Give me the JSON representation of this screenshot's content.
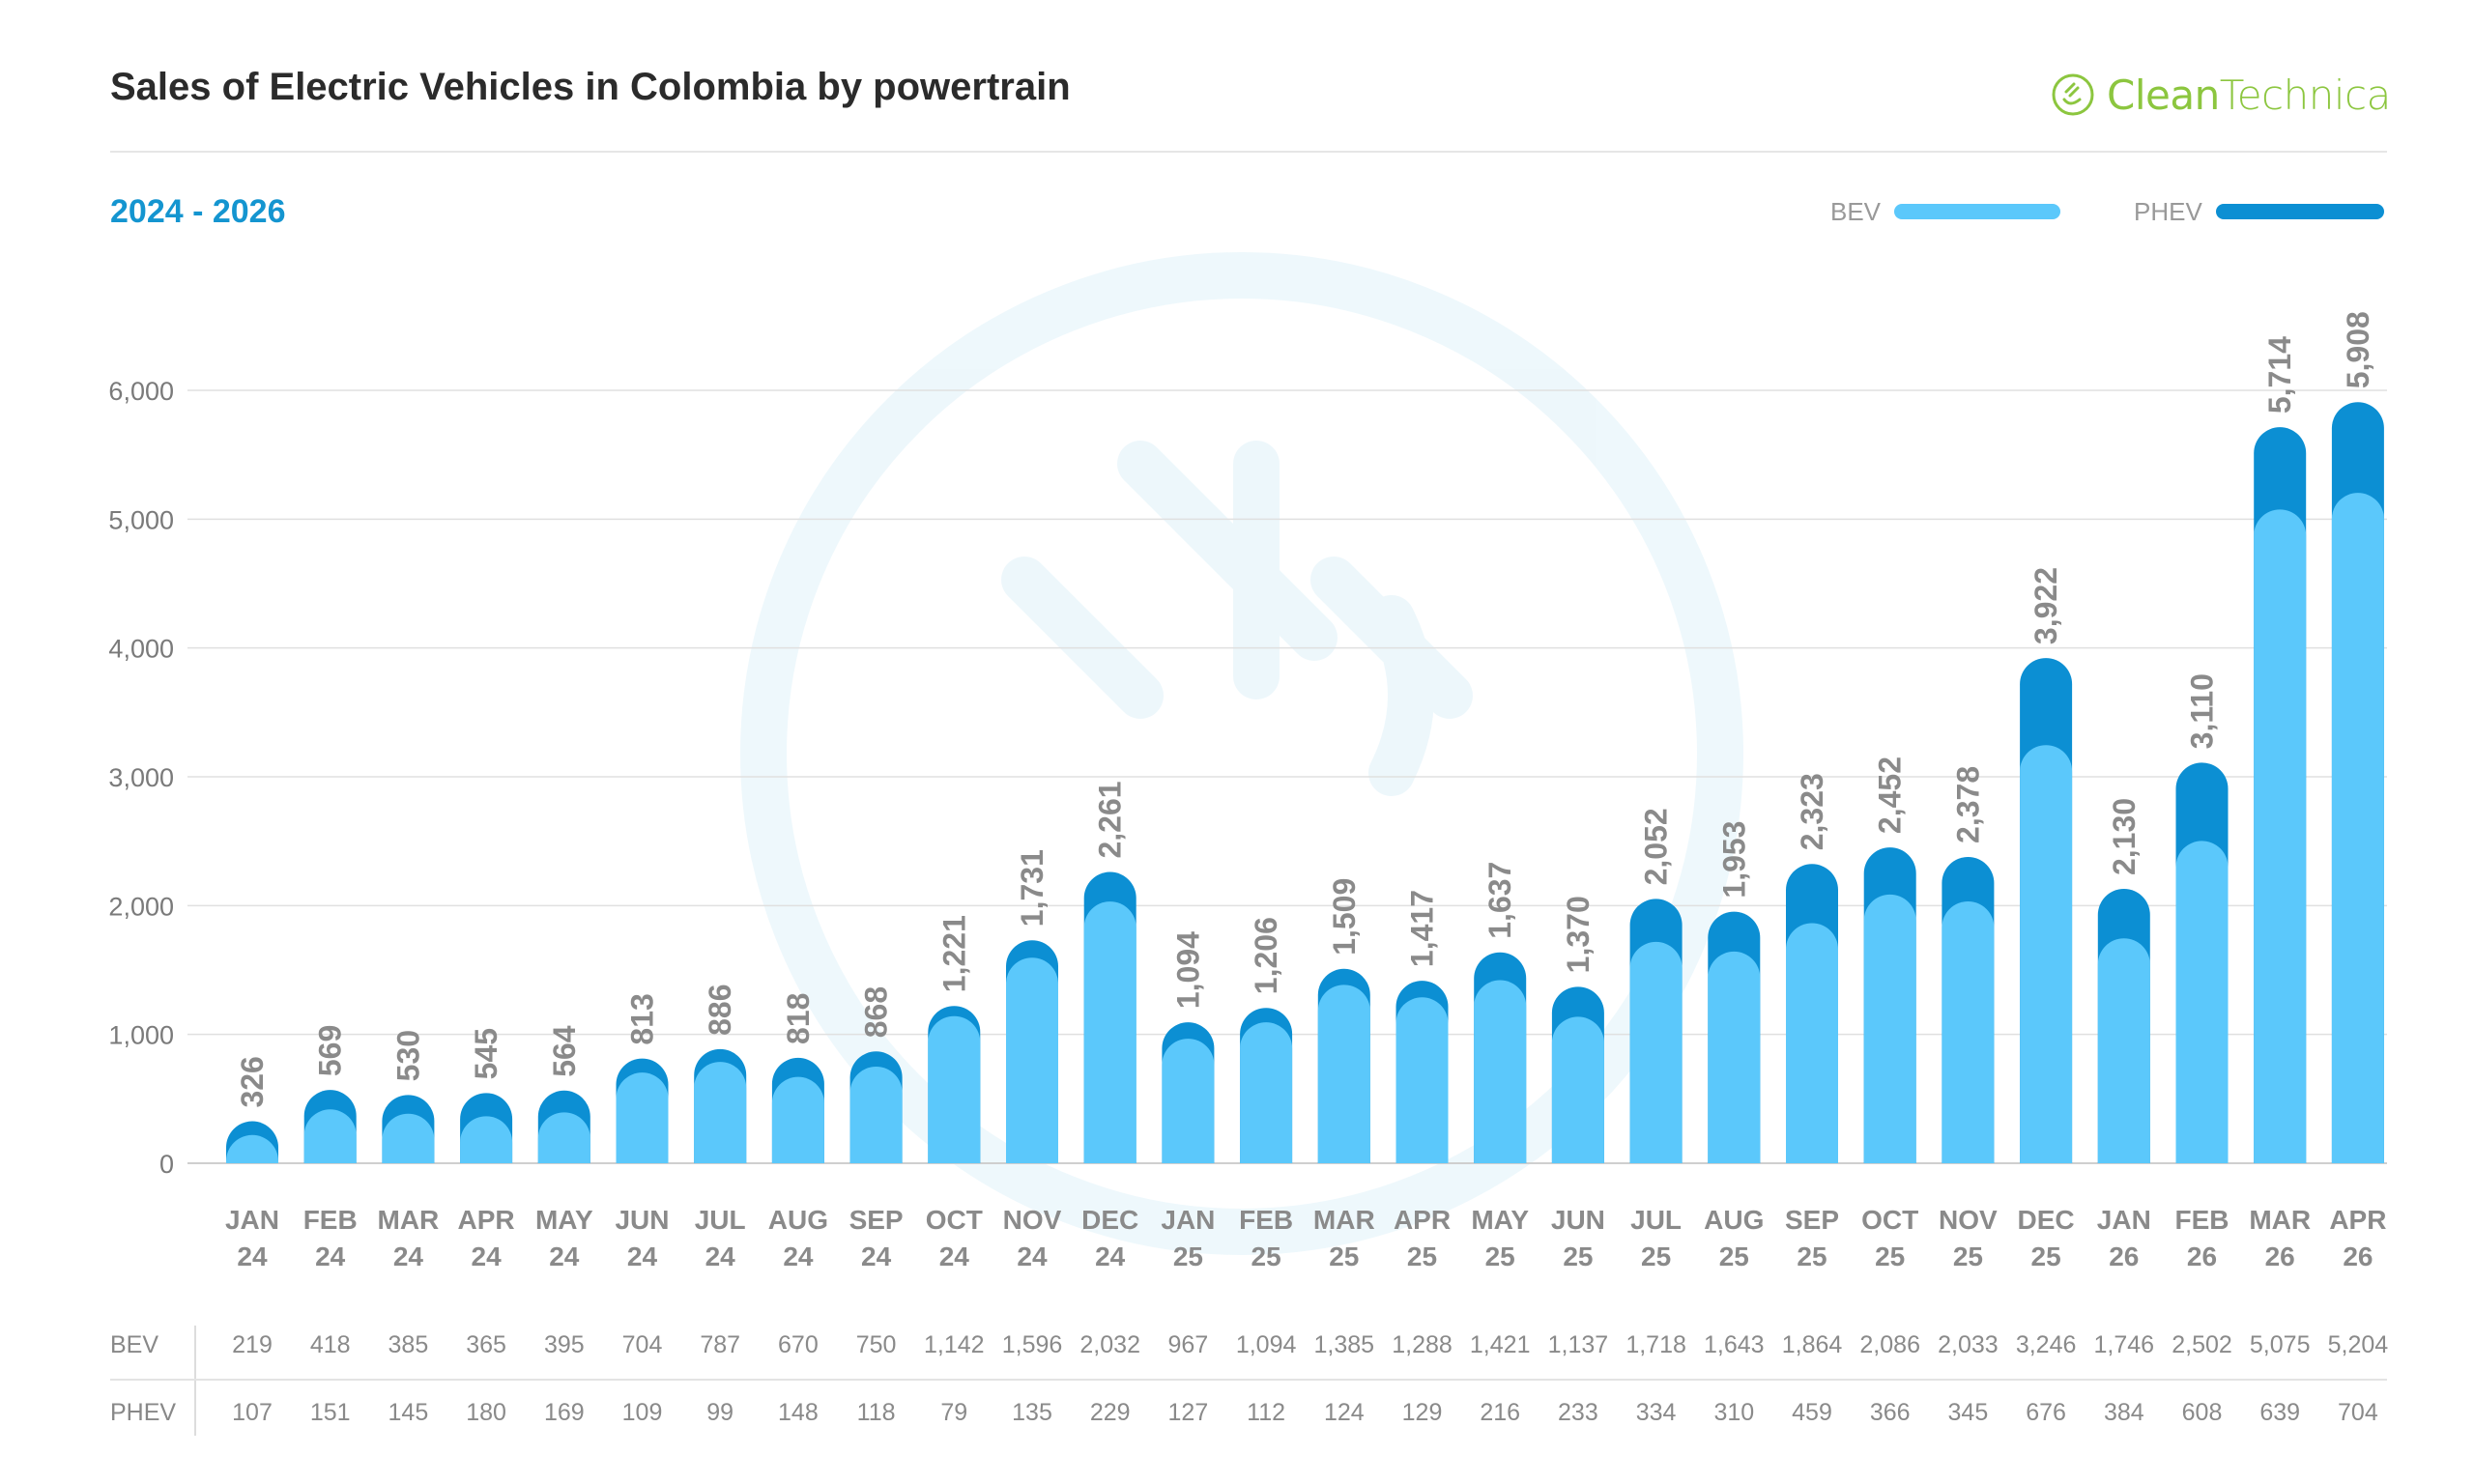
{
  "header": {
    "title": "Sales of Electric Vehicles in Colombia by powertrain",
    "subtitle": "2024 - 2026",
    "logo_text_a": "Clean",
    "logo_text_b": "Technica"
  },
  "colors": {
    "bev": "#5bc8fb",
    "phev": "#0c8fd3",
    "value_label": "#8a8a8a",
    "axis_label": "#7a7a7a",
    "month_label": "#8a8a8a",
    "grid": "#e0e0e0",
    "logo": "#8cc63f",
    "subtitle": "#1495d0"
  },
  "chart_data": {
    "type": "bar",
    "stacked": true,
    "categories": [
      [
        "JAN",
        "24"
      ],
      [
        "FEB",
        "24"
      ],
      [
        "MAR",
        "24"
      ],
      [
        "APR",
        "24"
      ],
      [
        "MAY",
        "24"
      ],
      [
        "JUN",
        "24"
      ],
      [
        "JUL",
        "24"
      ],
      [
        "AUG",
        "24"
      ],
      [
        "SEP",
        "24"
      ],
      [
        "OCT",
        "24"
      ],
      [
        "NOV",
        "24"
      ],
      [
        "DEC",
        "24"
      ],
      [
        "JAN",
        "25"
      ],
      [
        "FEB",
        "25"
      ],
      [
        "MAR",
        "25"
      ],
      [
        "APR",
        "25"
      ],
      [
        "MAY",
        "25"
      ],
      [
        "JUN",
        "25"
      ],
      [
        "JUL",
        "25"
      ],
      [
        "AUG",
        "25"
      ],
      [
        "SEP",
        "25"
      ],
      [
        "OCT",
        "25"
      ],
      [
        "NOV",
        "25"
      ],
      [
        "DEC",
        "25"
      ],
      [
        "JAN",
        "26"
      ],
      [
        "FEB",
        "26"
      ],
      [
        "MAR",
        "26"
      ],
      [
        "APR",
        "26"
      ]
    ],
    "series": [
      {
        "name": "BEV",
        "values": [
          219,
          418,
          385,
          365,
          395,
          704,
          787,
          670,
          750,
          1142,
          1596,
          2032,
          967,
          1094,
          1385,
          1288,
          1421,
          1137,
          1718,
          1643,
          1864,
          2086,
          2033,
          3246,
          1746,
          2502,
          5075,
          5204
        ]
      },
      {
        "name": "PHEV",
        "values": [
          107,
          151,
          145,
          180,
          169,
          109,
          99,
          148,
          118,
          79,
          135,
          229,
          127,
          112,
          124,
          129,
          216,
          233,
          334,
          310,
          459,
          366,
          345,
          676,
          384,
          608,
          639,
          704
        ]
      }
    ],
    "totals": [
      326,
      569,
      530,
      545,
      564,
      813,
      886,
      818,
      868,
      1221,
      1731,
      2261,
      1094,
      1206,
      1509,
      1417,
      1637,
      1370,
      2052,
      1953,
      2323,
      2452,
      2378,
      3922,
      2130,
      3110,
      5714,
      5908
    ],
    "total_labels": [
      "326",
      "569",
      "530",
      "545",
      "564",
      "813",
      "886",
      "818",
      "868",
      "1,221",
      "1,731",
      "2,261",
      "1,094",
      "1,206",
      "1,509",
      "1,417",
      "1,637",
      "1,370",
      "2,052",
      "1,953",
      "2,323",
      "2,452",
      "2,378",
      "3,922",
      "2,130",
      "3,110",
      "5,714",
      "5,908"
    ],
    "bev_labels": [
      "219",
      "418",
      "385",
      "365",
      "395",
      "704",
      "787",
      "670",
      "750",
      "1,142",
      "1,596",
      "2,032",
      "967",
      "1,094",
      "1,385",
      "1,288",
      "1,421",
      "1,137",
      "1,718",
      "1,643",
      "1,864",
      "2,086",
      "2,033",
      "3,246",
      "1,746",
      "2,502",
      "5,075",
      "5,204"
    ],
    "phev_labels": [
      "107",
      "151",
      "145",
      "180",
      "169",
      "109",
      "99",
      "148",
      "118",
      "79",
      "135",
      "229",
      "127",
      "112",
      "124",
      "129",
      "216",
      "233",
      "334",
      "310",
      "459",
      "366",
      "345",
      "676",
      "384",
      "608",
      "639",
      "704"
    ],
    "yticks": [
      0,
      1000,
      2000,
      3000,
      4000,
      5000,
      6000
    ],
    "ytick_labels": [
      "0",
      "1,000",
      "2,000",
      "3,000",
      "4,000",
      "5,000",
      "6,000"
    ],
    "ylim": [
      0,
      6000
    ],
    "grid": true,
    "legend": {
      "placement": "top-right",
      "entries": [
        "BEV",
        "PHEV"
      ]
    },
    "table_row_labels": [
      "BEV",
      "PHEV"
    ]
  }
}
